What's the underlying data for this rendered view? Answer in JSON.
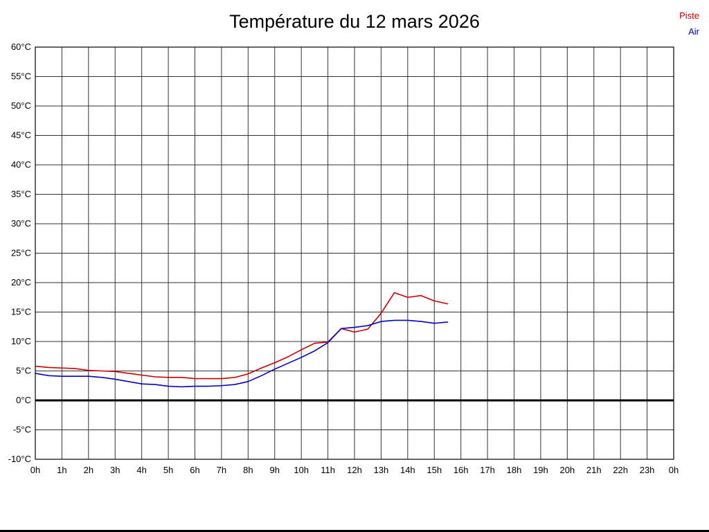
{
  "title": "Température du 12 mars 2026",
  "legend": [
    {
      "label": "Piste",
      "color": "#cc0000"
    },
    {
      "label": "Air",
      "color": "#0000cc"
    }
  ],
  "chart_data": {
    "type": "line",
    "title": "Température du 12 mars 2026",
    "xlabel": "",
    "ylabel": "",
    "x_unit": "hours",
    "xlim": [
      0,
      24
    ],
    "ylim": [
      -10,
      60
    ],
    "y_tick_step": 5,
    "grid": true,
    "zero_line": true,
    "legend_position": "top-right",
    "x_tick_labels": [
      "0h",
      "1h",
      "2h",
      "3h",
      "4h",
      "5h",
      "6h",
      "7h",
      "8h",
      "9h",
      "10h",
      "11h",
      "12h",
      "13h",
      "14h",
      "15h",
      "16h",
      "17h",
      "18h",
      "19h",
      "20h",
      "21h",
      "22h",
      "23h",
      "0h"
    ],
    "y_tick_labels": [
      "60°C",
      "55°C",
      "50°C",
      "45°C",
      "40°C",
      "35°C",
      "30°C",
      "25°C",
      "20°C",
      "15°C",
      "10°C",
      "5°C",
      "0°C",
      "-5°C",
      "-10°C"
    ],
    "x": [
      0,
      0.5,
      1,
      1.5,
      2,
      2.5,
      3,
      3.5,
      4,
      4.5,
      5,
      5.5,
      6,
      6.5,
      7,
      7.5,
      8,
      8.5,
      9,
      9.5,
      10,
      10.5,
      11,
      11.5,
      12,
      12.5,
      13,
      13.5,
      14,
      14.5,
      15,
      15.5
    ],
    "series": [
      {
        "name": "Piste",
        "color": "#cc0000",
        "values": [
          5.8,
          5.6,
          5.5,
          5.4,
          5.1,
          5.0,
          4.9,
          4.6,
          4.3,
          4.0,
          3.9,
          3.9,
          3.7,
          3.7,
          3.7,
          3.9,
          4.5,
          5.5,
          6.4,
          7.4,
          8.6,
          9.7,
          9.9,
          12.2,
          11.6,
          12.1,
          14.8,
          18.3,
          17.5,
          17.8,
          16.9,
          16.4
        ]
      },
      {
        "name": "Air",
        "color": "#0000cc",
        "values": [
          4.6,
          4.2,
          4.1,
          4.1,
          4.1,
          3.9,
          3.6,
          3.2,
          2.8,
          2.7,
          2.4,
          2.3,
          2.4,
          2.4,
          2.5,
          2.7,
          3.2,
          4.2,
          5.3,
          6.3,
          7.3,
          8.4,
          9.8,
          12.2,
          12.4,
          12.7,
          13.4,
          13.6,
          13.6,
          13.4,
          13.1,
          13.3
        ]
      }
    ]
  }
}
